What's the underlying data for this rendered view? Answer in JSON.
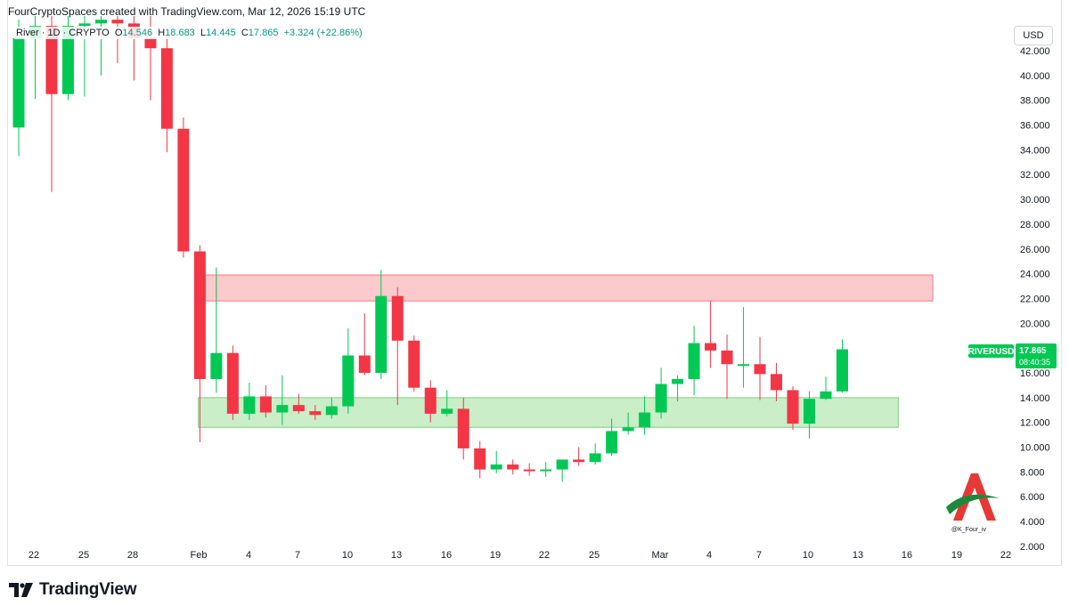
{
  "header": {
    "attribution": "FourCryptoSpaces created with TradingView.com, Mar 12, 2026 15:19 UTC"
  },
  "legend": {
    "symbol": "River · 1D · CRYPTO",
    "o_label": "O",
    "o_value": "14.546",
    "h_label": "H",
    "h_value": "18.683",
    "l_label": "L",
    "l_value": "14.445",
    "c_label": "C",
    "c_value": "17.865",
    "change": "+3.324 (+22.86%)"
  },
  "currency_button": "USD",
  "brand": {
    "name": "TradingView"
  },
  "watermark": {
    "handle": "@K_Four_iv"
  },
  "colors": {
    "up": "#00c853",
    "down": "#f23645",
    "resistance_zone": "#f7a6ac",
    "support_zone": "#a5e3a4",
    "badge": "#00c853"
  },
  "chart_data": {
    "type": "candlestick",
    "symbol": "RIVERUSD",
    "last_price": "17.865",
    "countdown": "08:40:35",
    "ylim": [
      0.7,
      44.8
    ],
    "y_ticks": [
      "2.000",
      "4.000",
      "6.000",
      "8.000",
      "10.000",
      "12.000",
      "14.000",
      "16.000",
      "18.000",
      "20.000",
      "22.000",
      "24.000",
      "26.000",
      "28.000",
      "30.000",
      "32.000",
      "34.000",
      "36.000",
      "38.000",
      "40.000",
      "42.000"
    ],
    "x_ticks": [
      "22",
      "25",
      "28",
      "Feb",
      "4",
      "7",
      "10",
      "13",
      "16",
      "19",
      "22",
      "25",
      "Mar",
      "4",
      "7",
      "10",
      "13",
      "16",
      "19",
      "22"
    ],
    "zones": [
      {
        "kind": "resistance",
        "low": 21.8,
        "high": 23.9,
        "from_day": 10.9,
        "to_day": 55.5
      },
      {
        "kind": "support",
        "low": 11.6,
        "high": 14.0,
        "from_day": 10.9,
        "to_day": 53.4
      }
    ],
    "candles": [
      {
        "o": 35.8,
        "h": 44.5,
        "l": 33.5,
        "c": 43.0
      },
      {
        "o": 43.0,
        "h": 44.8,
        "l": 38.1,
        "c": 44.0
      },
      {
        "o": 44.0,
        "h": 44.8,
        "l": 30.6,
        "c": 38.5
      },
      {
        "o": 38.5,
        "h": 44.8,
        "l": 38.0,
        "c": 44.0
      },
      {
        "o": 44.0,
        "h": 44.8,
        "l": 38.3,
        "c": 44.2
      },
      {
        "o": 44.2,
        "h": 44.8,
        "l": 40.0,
        "c": 44.5
      },
      {
        "o": 44.5,
        "h": 44.8,
        "l": 41.0,
        "c": 44.2
      },
      {
        "o": 44.2,
        "h": 44.8,
        "l": 39.6,
        "c": 43.0
      },
      {
        "o": 43.0,
        "h": 44.8,
        "l": 38.0,
        "c": 42.2
      },
      {
        "o": 42.2,
        "h": 43.2,
        "l": 33.8,
        "c": 35.7
      },
      {
        "o": 35.7,
        "h": 36.6,
        "l": 25.3,
        "c": 25.8
      },
      {
        "o": 25.8,
        "h": 26.3,
        "l": 10.4,
        "c": 15.5
      },
      {
        "o": 15.5,
        "h": 24.5,
        "l": 14.4,
        "c": 17.6
      },
      {
        "o": 17.6,
        "h": 18.2,
        "l": 12.2,
        "c": 12.7
      },
      {
        "o": 12.7,
        "h": 15.2,
        "l": 12.2,
        "c": 14.1
      },
      {
        "o": 14.1,
        "h": 15.0,
        "l": 12.4,
        "c": 12.8
      },
      {
        "o": 12.8,
        "h": 15.8,
        "l": 11.8,
        "c": 13.4
      },
      {
        "o": 13.4,
        "h": 14.3,
        "l": 12.7,
        "c": 12.9
      },
      {
        "o": 12.9,
        "h": 13.4,
        "l": 12.2,
        "c": 12.6
      },
      {
        "o": 12.6,
        "h": 14.0,
        "l": 12.3,
        "c": 13.3
      },
      {
        "o": 13.3,
        "h": 19.6,
        "l": 12.7,
        "c": 17.4
      },
      {
        "o": 17.4,
        "h": 20.8,
        "l": 15.8,
        "c": 16.0
      },
      {
        "o": 16.0,
        "h": 24.3,
        "l": 15.5,
        "c": 22.2
      },
      {
        "o": 22.2,
        "h": 22.9,
        "l": 13.4,
        "c": 18.6
      },
      {
        "o": 18.6,
        "h": 19.0,
        "l": 14.5,
        "c": 14.8
      },
      {
        "o": 14.8,
        "h": 15.4,
        "l": 12.0,
        "c": 12.7
      },
      {
        "o": 12.7,
        "h": 14.6,
        "l": 12.5,
        "c": 13.1
      },
      {
        "o": 13.1,
        "h": 14.0,
        "l": 9.0,
        "c": 9.9
      },
      {
        "o": 9.9,
        "h": 10.5,
        "l": 7.5,
        "c": 8.2
      },
      {
        "o": 8.2,
        "h": 9.7,
        "l": 7.9,
        "c": 8.6
      },
      {
        "o": 8.6,
        "h": 9.0,
        "l": 7.8,
        "c": 8.2
      },
      {
        "o": 8.2,
        "h": 8.7,
        "l": 7.7,
        "c": 8.1
      },
      {
        "o": 8.1,
        "h": 8.8,
        "l": 7.6,
        "c": 8.2
      },
      {
        "o": 8.2,
        "h": 9.0,
        "l": 7.2,
        "c": 9.0
      },
      {
        "o": 9.0,
        "h": 10.0,
        "l": 8.5,
        "c": 8.8
      },
      {
        "o": 8.8,
        "h": 10.3,
        "l": 8.6,
        "c": 9.5
      },
      {
        "o": 9.5,
        "h": 12.3,
        "l": 9.3,
        "c": 11.3
      },
      {
        "o": 11.3,
        "h": 12.8,
        "l": 11.0,
        "c": 11.6
      },
      {
        "o": 11.6,
        "h": 14.1,
        "l": 11.0,
        "c": 12.8
      },
      {
        "o": 12.8,
        "h": 16.4,
        "l": 12.3,
        "c": 15.1
      },
      {
        "o": 15.1,
        "h": 15.8,
        "l": 13.7,
        "c": 15.5
      },
      {
        "o": 15.5,
        "h": 19.8,
        "l": 14.2,
        "c": 18.4
      },
      {
        "o": 18.4,
        "h": 21.8,
        "l": 16.4,
        "c": 17.8
      },
      {
        "o": 17.8,
        "h": 19.1,
        "l": 13.9,
        "c": 16.7
      },
      {
        "o": 16.7,
        "h": 21.3,
        "l": 14.8,
        "c": 16.7
      },
      {
        "o": 16.7,
        "h": 18.9,
        "l": 13.8,
        "c": 15.9
      },
      {
        "o": 15.9,
        "h": 16.8,
        "l": 13.7,
        "c": 14.6
      },
      {
        "o": 14.6,
        "h": 14.9,
        "l": 11.4,
        "c": 11.9
      },
      {
        "o": 11.9,
        "h": 14.5,
        "l": 10.7,
        "c": 13.9
      },
      {
        "o": 13.9,
        "h": 15.7,
        "l": 13.8,
        "c": 14.5
      },
      {
        "o": 14.5,
        "h": 18.7,
        "l": 14.4,
        "c": 17.9
      }
    ]
  }
}
